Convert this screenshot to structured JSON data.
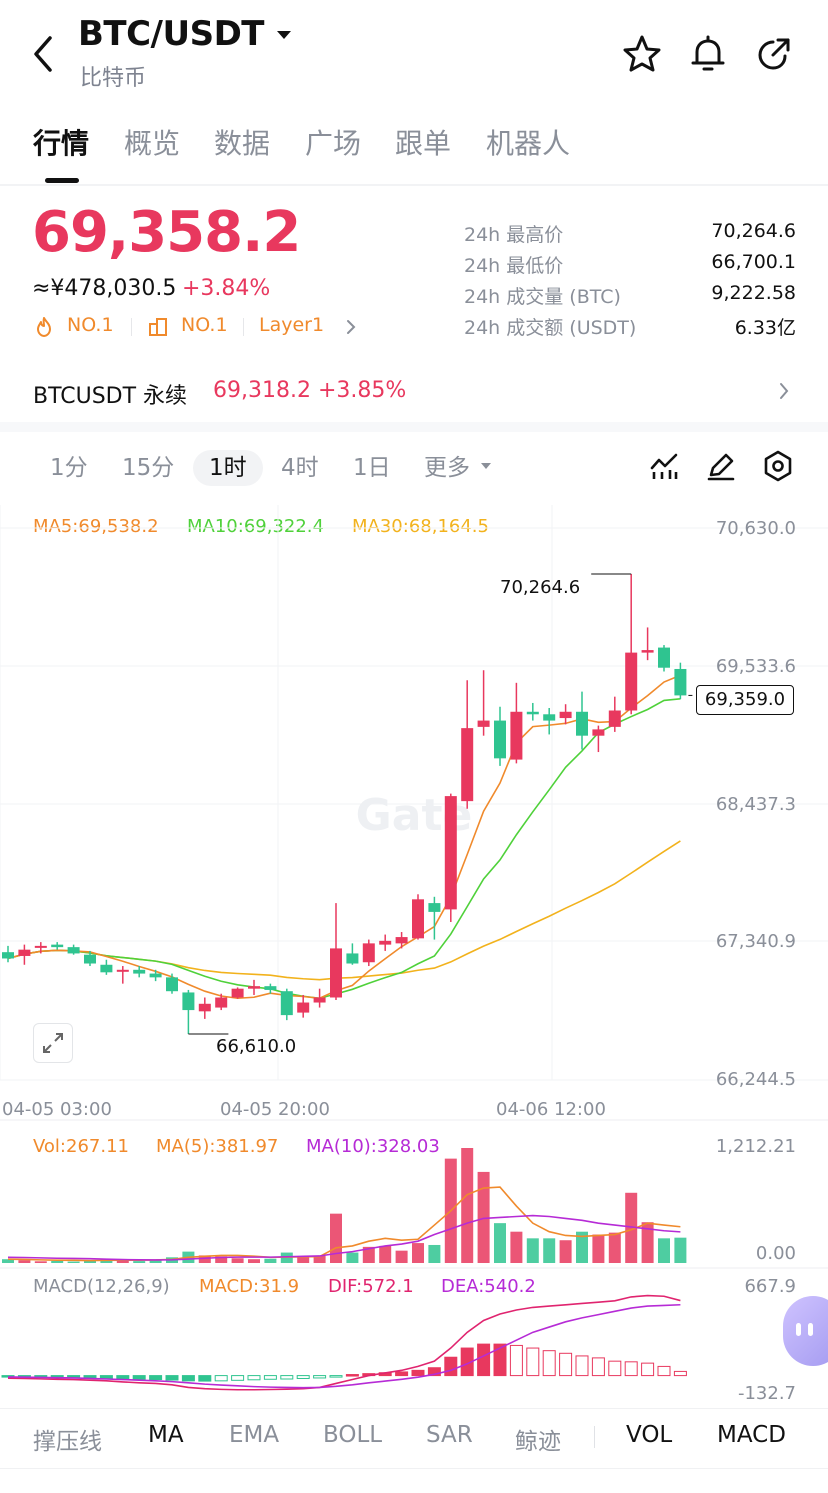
{
  "header": {
    "title": "BTC/USDT",
    "subtitle": "比特币",
    "icons": [
      "back-arrow-icon",
      "dropdown-caret-icon",
      "star-icon",
      "bell-icon",
      "share-icon"
    ]
  },
  "tabs": [
    {
      "label": "行情",
      "active": true
    },
    {
      "label": "概览",
      "active": false
    },
    {
      "label": "数据",
      "active": false
    },
    {
      "label": "广场",
      "active": false
    },
    {
      "label": "跟单",
      "active": false
    },
    {
      "label": "机器人",
      "active": false
    }
  ],
  "price": {
    "last": "69,358.2",
    "cny": "≈¥478,030.5",
    "change": "+3.84%",
    "rank_hot": "NO.1",
    "rank_cap": "NO.1",
    "tag": "Layer1"
  },
  "stats": [
    {
      "label": "24h 最高价",
      "value": "70,264.6"
    },
    {
      "label": "24h 最低价",
      "value": "66,700.1"
    },
    {
      "label": "24h 成交量 (BTC)",
      "value": "9,222.58"
    },
    {
      "label": "24h 成交额 (USDT)",
      "value": "6.33亿"
    }
  ],
  "perpetual": {
    "name": "BTCUSDT 永续",
    "price": "69,318.2",
    "change": "+3.85%"
  },
  "intervals": [
    {
      "label": "1分",
      "active": false
    },
    {
      "label": "15分",
      "active": false
    },
    {
      "label": "1时",
      "active": true
    },
    {
      "label": "4时",
      "active": false
    },
    {
      "label": "1日",
      "active": false
    },
    {
      "label": "更多",
      "active": false
    }
  ],
  "ma_legend": {
    "ma5": "MA5:69,538.2",
    "ma10": "MA10:69,322.4",
    "ma30": "MA30:68,164.5"
  },
  "price_axis": [
    "70,630.0",
    "69,533.6",
    "68,437.3",
    "67,340.9",
    "66,244.5"
  ],
  "high_marker": "70,264.6",
  "low_marker": "66,610.0",
  "current_marker": "69,359.0",
  "time_axis": [
    "04-05 03:00",
    "04-05 20:00",
    "04-06 12:00"
  ],
  "vol_legend": {
    "vol": "Vol:267.11",
    "ma5": "MA(5):381.97",
    "ma10": "MA(10):328.03"
  },
  "vol_axis": [
    "1,212.21",
    "0.00"
  ],
  "macd_legend": {
    "name": "MACD(12,26,9)",
    "macd": "MACD:31.9",
    "dif": "DIF:572.1",
    "dea": "DEA:540.2"
  },
  "macd_axis": [
    "667.9",
    "-132.7"
  ],
  "indicators": [
    {
      "label": "撑压线",
      "on": false
    },
    {
      "label": "MA",
      "on": true
    },
    {
      "label": "EMA",
      "on": false
    },
    {
      "label": "BOLL",
      "on": false
    },
    {
      "label": "SAR",
      "on": false
    },
    {
      "label": "鲸迹",
      "on": false
    },
    {
      "label": "VOL",
      "on": true
    },
    {
      "label": "MACD",
      "on": true
    }
  ],
  "colors": {
    "up": "#e8385e",
    "down": "#2fc490",
    "ma5": "#f08a2c",
    "ma10": "#4fd13a",
    "ma30": "#f2b21c",
    "macd_dif": "#e0246f",
    "macd_dea": "#b62bd6"
  },
  "chart_data": {
    "type": "candlestick",
    "price_range": [
      66244.5,
      70630.0
    ],
    "candles": [
      {
        "o": 67260,
        "h": 67310,
        "l": 67180,
        "c": 67210
      },
      {
        "o": 67230,
        "h": 67320,
        "l": 67160,
        "c": 67280
      },
      {
        "o": 67300,
        "h": 67340,
        "l": 67250,
        "c": 67310
      },
      {
        "o": 67320,
        "h": 67340,
        "l": 67280,
        "c": 67300
      },
      {
        "o": 67300,
        "h": 67320,
        "l": 67240,
        "c": 67250
      },
      {
        "o": 67240,
        "h": 67270,
        "l": 67150,
        "c": 67170
      },
      {
        "o": 67160,
        "h": 67200,
        "l": 67080,
        "c": 67100
      },
      {
        "o": 67110,
        "h": 67150,
        "l": 67010,
        "c": 67120
      },
      {
        "o": 67120,
        "h": 67150,
        "l": 67060,
        "c": 67090
      },
      {
        "o": 67090,
        "h": 67120,
        "l": 67030,
        "c": 67060
      },
      {
        "o": 67060,
        "h": 67090,
        "l": 66930,
        "c": 66950
      },
      {
        "o": 66940,
        "h": 66960,
        "l": 66610,
        "c": 66800
      },
      {
        "o": 66790,
        "h": 66900,
        "l": 66730,
        "c": 66850
      },
      {
        "o": 66820,
        "h": 66930,
        "l": 66800,
        "c": 66900
      },
      {
        "o": 66900,
        "h": 66980,
        "l": 66890,
        "c": 66970
      },
      {
        "o": 66970,
        "h": 67040,
        "l": 66920,
        "c": 66990
      },
      {
        "o": 66990,
        "h": 67010,
        "l": 66930,
        "c": 66960
      },
      {
        "o": 66950,
        "h": 66970,
        "l": 66720,
        "c": 66760
      },
      {
        "o": 66780,
        "h": 66920,
        "l": 66740,
        "c": 66860
      },
      {
        "o": 66860,
        "h": 66970,
        "l": 66820,
        "c": 66900
      },
      {
        "o": 66900,
        "h": 67650,
        "l": 66880,
        "c": 67290
      },
      {
        "o": 67250,
        "h": 67330,
        "l": 67160,
        "c": 67170
      },
      {
        "o": 67180,
        "h": 67360,
        "l": 67150,
        "c": 67330
      },
      {
        "o": 67320,
        "h": 67400,
        "l": 67270,
        "c": 67350
      },
      {
        "o": 67330,
        "h": 67420,
        "l": 67290,
        "c": 67380
      },
      {
        "o": 67370,
        "h": 67720,
        "l": 67360,
        "c": 67680
      },
      {
        "o": 67650,
        "h": 67700,
        "l": 67360,
        "c": 67580
      },
      {
        "o": 67600,
        "h": 68520,
        "l": 67500,
        "c": 68500
      },
      {
        "o": 68460,
        "h": 69420,
        "l": 68400,
        "c": 69040
      },
      {
        "o": 69050,
        "h": 69500,
        "l": 68980,
        "c": 69100
      },
      {
        "o": 69100,
        "h": 69210,
        "l": 68740,
        "c": 68800
      },
      {
        "o": 68790,
        "h": 69400,
        "l": 68760,
        "c": 69170
      },
      {
        "o": 69170,
        "h": 69240,
        "l": 69100,
        "c": 69150
      },
      {
        "o": 69150,
        "h": 69200,
        "l": 68990,
        "c": 69100
      },
      {
        "o": 69120,
        "h": 69230,
        "l": 69070,
        "c": 69170
      },
      {
        "o": 69170,
        "h": 69330,
        "l": 68870,
        "c": 68980
      },
      {
        "o": 68980,
        "h": 69060,
        "l": 68850,
        "c": 69030
      },
      {
        "o": 69050,
        "h": 69290,
        "l": 69010,
        "c": 69180
      },
      {
        "o": 69180,
        "h": 70264.6,
        "l": 69150,
        "c": 69640
      },
      {
        "o": 69640,
        "h": 69840,
        "l": 69580,
        "c": 69660
      },
      {
        "o": 69680,
        "h": 69700,
        "l": 69490,
        "c": 69520
      },
      {
        "o": 69510,
        "h": 69560,
        "l": 69270,
        "c": 69300
      }
    ],
    "volume": [
      40,
      30,
      18,
      22,
      15,
      25,
      45,
      30,
      20,
      28,
      60,
      120,
      80,
      70,
      50,
      40,
      45,
      110,
      60,
      75,
      520,
      110,
      170,
      180,
      130,
      210,
      190,
      1100,
      1212,
      960,
      420,
      330,
      260,
      260,
      240,
      330,
      300,
      320,
      740,
      430,
      260,
      267
    ],
    "vol_ma5": [
      40,
      38,
      33,
      30,
      28,
      25,
      28,
      30,
      30,
      32,
      38,
      60,
      70,
      80,
      80,
      72,
      60,
      62,
      65,
      68,
      160,
      180,
      230,
      260,
      240,
      250,
      400,
      550,
      720,
      790,
      800,
      600,
      420,
      330,
      290,
      280,
      290,
      300,
      350,
      420,
      400,
      382
    ],
    "vol_ma10": [
      60,
      58,
      54,
      50,
      48,
      45,
      40,
      36,
      34,
      32,
      34,
      42,
      50,
      58,
      62,
      62,
      62,
      66,
      70,
      74,
      100,
      120,
      150,
      180,
      200,
      230,
      300,
      360,
      420,
      470,
      480,
      490,
      500,
      490,
      470,
      450,
      420,
      400,
      380,
      360,
      340,
      328
    ],
    "macd_hist": [
      -5,
      -6,
      -8,
      -10,
      -14,
      -18,
      -22,
      -26,
      -28,
      -30,
      -34,
      -40,
      -42,
      -40,
      -36,
      -32,
      -28,
      -26,
      -22,
      -18,
      -5,
      8,
      15,
      22,
      28,
      40,
      60,
      140,
      210,
      240,
      240,
      230,
      210,
      190,
      170,
      150,
      135,
      110,
      105,
      95,
      70,
      31.9
    ],
    "macd_dif": [
      -20,
      -22,
      -25,
      -28,
      -30,
      -35,
      -40,
      -48,
      -55,
      -60,
      -70,
      -90,
      -100,
      -105,
      -108,
      -108,
      -106,
      -104,
      -100,
      -90,
      -60,
      -30,
      0,
      20,
      40,
      70,
      110,
      210,
      330,
      420,
      470,
      500,
      520,
      530,
      540,
      550,
      560,
      570,
      600,
      610,
      605,
      572.1
    ],
    "macd_dea": [
      -10,
      -12,
      -14,
      -16,
      -18,
      -22,
      -26,
      -30,
      -35,
      -40,
      -46,
      -55,
      -65,
      -72,
      -78,
      -84,
      -88,
      -90,
      -92,
      -90,
      -82,
      -70,
      -55,
      -42,
      -28,
      -12,
      10,
      40,
      90,
      150,
      210,
      270,
      330,
      370,
      410,
      440,
      465,
      490,
      515,
      530,
      535,
      540.2
    ]
  }
}
